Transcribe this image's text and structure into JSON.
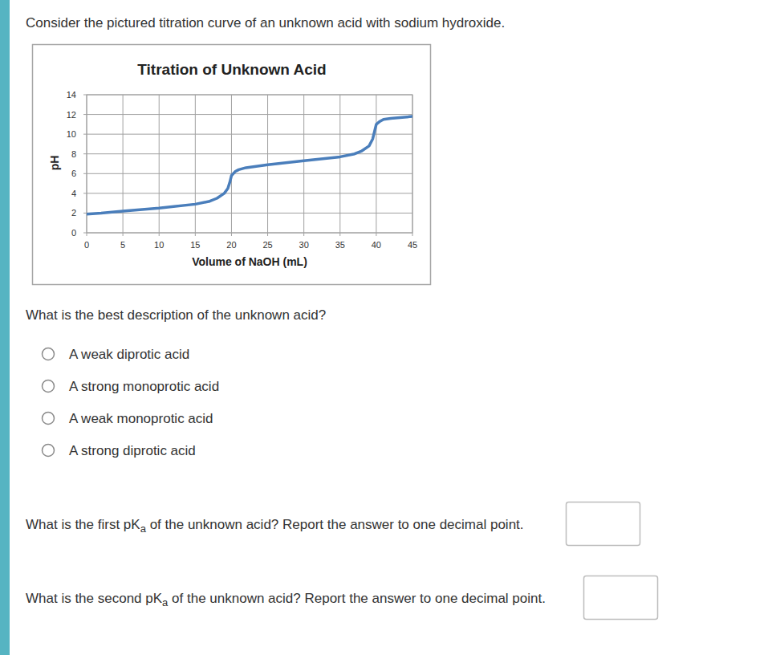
{
  "intro": "Consider the pictured titration curve of an unknown acid with sodium hydroxide.",
  "chart_data": {
    "type": "line",
    "title": "Titration of Unknown Acid",
    "x_label": "Volume of NaOH (mL)",
    "y_label": "pH",
    "x": [
      0,
      2,
      5,
      10,
      15,
      17,
      18,
      19,
      19.5,
      19.8,
      20,
      20.5,
      21,
      22,
      25,
      30,
      35,
      37,
      38,
      39,
      39.5,
      39.8,
      40,
      40.5,
      41,
      42,
      45
    ],
    "values": [
      1.9,
      2.0,
      2.2,
      2.5,
      2.9,
      3.2,
      3.5,
      4.0,
      4.5,
      5.2,
      5.8,
      6.2,
      6.4,
      6.6,
      6.9,
      7.3,
      7.7,
      8.0,
      8.3,
      8.8,
      9.5,
      10.4,
      11.0,
      11.3,
      11.5,
      11.6,
      11.8
    ],
    "color": "#4a7ebb",
    "xlim": [
      0,
      45
    ],
    "xticks": [
      0,
      5,
      10,
      15,
      20,
      25,
      30,
      35,
      40,
      45
    ],
    "ylim": [
      0,
      14
    ],
    "yticks": [
      0,
      2,
      4,
      6,
      8,
      10,
      12,
      14
    ],
    "grid": true
  },
  "question_1": {
    "text": "What is the best description of the unknown acid?",
    "options": [
      "A weak diprotic acid",
      "A strong monoprotic acid",
      "A weak monoprotic acid",
      "A strong diprotic acid"
    ]
  },
  "question_2": {
    "text": "What is the first pK",
    "subscript": "a",
    "text_after": " of the unknown acid? Report the answer to one decimal point."
  },
  "question_3": {
    "text": "What is the second pK",
    "subscript": "a",
    "text_after": " of the unknown acid? Report the answer to one decimal point."
  }
}
